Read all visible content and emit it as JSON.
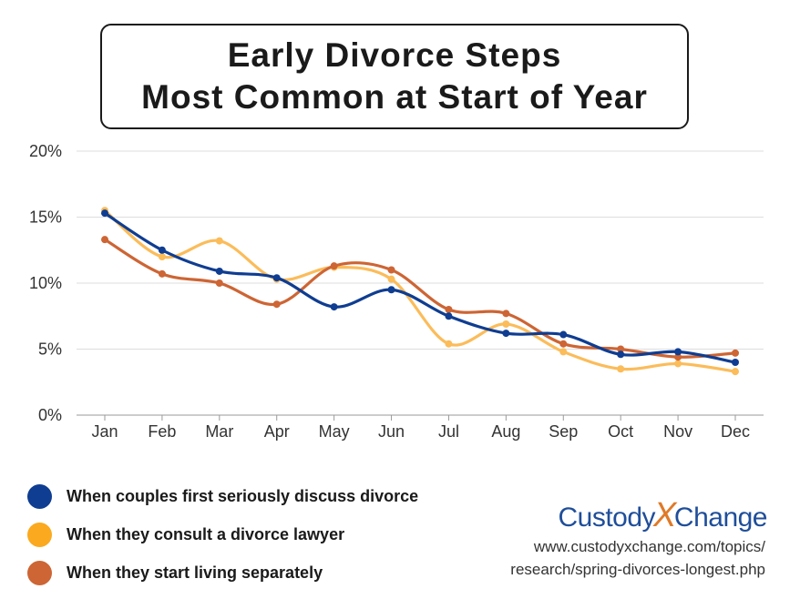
{
  "title": {
    "line1": "Early Divorce Steps",
    "line2": "Most Common at Start of Year"
  },
  "chart_data": {
    "type": "line",
    "categories": [
      "Jan",
      "Feb",
      "Mar",
      "Apr",
      "May",
      "Jun",
      "Jul",
      "Aug",
      "Sep",
      "Oct",
      "Nov",
      "Dec"
    ],
    "ylim": [
      0,
      20
    ],
    "yticks": [
      "0%",
      "5%",
      "10%",
      "15%",
      "20%"
    ],
    "grid": true,
    "series": [
      {
        "name": "When couples first seriously discuss divorce",
        "color": "#0f3d91",
        "values": [
          15.3,
          12.5,
          10.9,
          10.4,
          8.2,
          9.5,
          7.5,
          6.2,
          6.1,
          4.6,
          4.8,
          4.0
        ]
      },
      {
        "name": "When they consult a divorce lawyer",
        "color": "#fbbc5a",
        "values": [
          15.5,
          12.0,
          13.2,
          10.3,
          11.2,
          10.3,
          5.4,
          6.9,
          4.8,
          3.5,
          3.9,
          3.3
        ]
      },
      {
        "name": "When they start living separately",
        "color": "#cd6534",
        "values": [
          13.3,
          10.7,
          10.0,
          8.4,
          11.3,
          11.0,
          8.0,
          7.7,
          5.4,
          5.0,
          4.4,
          4.7
        ]
      }
    ]
  },
  "legend_dot_colors": [
    "#0f3d91",
    "#fba91e",
    "#cd6534"
  ],
  "branding": {
    "left": "Custody",
    "x": "X",
    "right": "Change"
  },
  "source": {
    "line1": "www.custodyxchange.com/topics/",
    "line2": "research/spring-divorces-longest.php"
  }
}
